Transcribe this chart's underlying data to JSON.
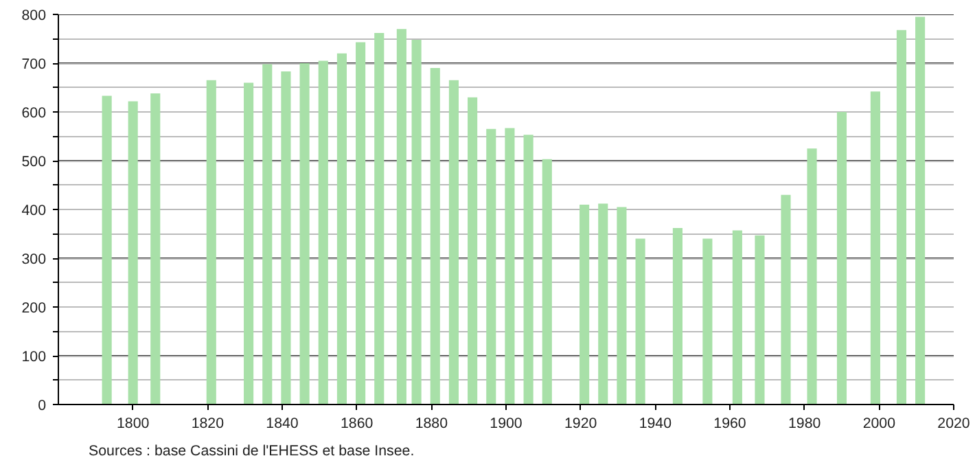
{
  "chart_data": {
    "type": "bar",
    "x": [
      1793,
      1800,
      1806,
      1821,
      1831,
      1836,
      1841,
      1846,
      1851,
      1856,
      1861,
      1866,
      1872,
      1876,
      1881,
      1886,
      1891,
      1896,
      1901,
      1906,
      1911,
      1921,
      1926,
      1931,
      1936,
      1946,
      1954,
      1962,
      1968,
      1975,
      1982,
      1990,
      1999,
      2006,
      2011
    ],
    "values": [
      633,
      622,
      638,
      665,
      660,
      698,
      683,
      700,
      705,
      720,
      743,
      762,
      770,
      748,
      690,
      665,
      630,
      565,
      567,
      553,
      503,
      410,
      412,
      405,
      340,
      362,
      340,
      357,
      347,
      430,
      525,
      600,
      642,
      768,
      795
    ],
    "color": "#a8e0a8",
    "xlim": [
      1780,
      2020
    ],
    "xticks": [
      1800,
      1820,
      1840,
      1860,
      1880,
      1900,
      1920,
      1940,
      1960,
      1980,
      2000,
      2020
    ],
    "ylim": [
      0,
      800
    ],
    "yticks": [
      0,
      {
        "value": 50,
        "label": null
      },
      100,
      {
        "value": 150,
        "label": null
      },
      200,
      {
        "value": 250,
        "label": null
      },
      300,
      {
        "value": 350,
        "label": null
      },
      400,
      {
        "value": 450,
        "label": null
      },
      500,
      {
        "value": 550,
        "label": null
      },
      600,
      {
        "value": 650,
        "label": null
      },
      700,
      {
        "value": 750,
        "label": null
      },
      800
    ],
    "grid": "y",
    "annotations": [
      "Sources : base Cassini de l'EHESS et base Insee."
    ]
  }
}
